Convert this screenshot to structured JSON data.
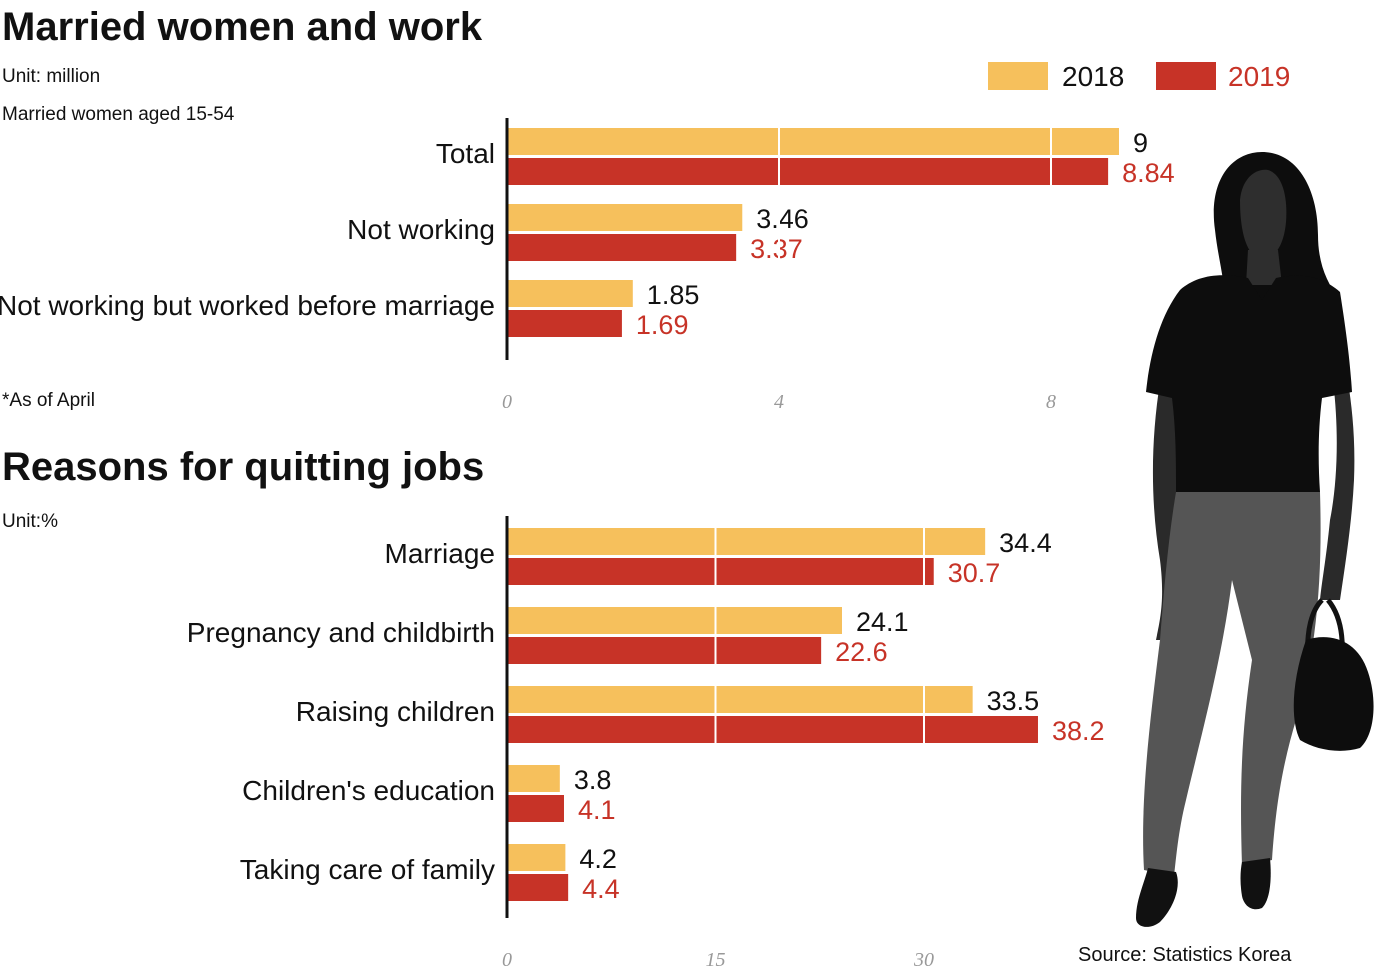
{
  "colors": {
    "y2018": "#f6c05c",
    "y2019": "#c73327",
    "axis": "#111111",
    "tick": "#999999",
    "silhouette_top": "#0d0d0d",
    "silhouette_pants": "#555555"
  },
  "legend": {
    "items": [
      "2018",
      "2019"
    ]
  },
  "figure": {
    "icon": "woman-silhouette-icon"
  },
  "source": "Source: Statistics Korea",
  "chart_data": [
    {
      "type": "bar",
      "title": "Married women and work",
      "unit": "Unit: million",
      "subtitle": "Married women aged 15-54",
      "footnote": "*As of April",
      "categories": [
        "Total",
        "Not working",
        "Not working but worked before marriage"
      ],
      "series": [
        {
          "name": "2018",
          "values": [
            9,
            3.46,
            1.85
          ],
          "labels": [
            "9",
            "3.46",
            "1.85"
          ]
        },
        {
          "name": "2019",
          "values": [
            8.84,
            3.37,
            1.69
          ],
          "labels": [
            "8.84",
            "3.37",
            "1.69"
          ]
        }
      ],
      "xlim": [
        0,
        9
      ],
      "ticks": [
        0,
        4,
        8
      ],
      "tick_labels": [
        "0",
        "4",
        "8"
      ],
      "orientation": "horizontal",
      "grid": "white lines at ticks",
      "legend": "top-right"
    },
    {
      "type": "bar",
      "title": "Reasons for quitting jobs",
      "unit": "Unit:%",
      "categories": [
        "Marriage",
        "Pregnancy and childbirth",
        "Raising children",
        "Children's education",
        "Taking care of family"
      ],
      "series": [
        {
          "name": "2018",
          "values": [
            34.4,
            24.1,
            33.5,
            3.8,
            4.2
          ],
          "labels": [
            "34.4",
            "24.1",
            "33.5",
            "3.8",
            "4.2"
          ]
        },
        {
          "name": "2019",
          "values": [
            30.7,
            22.6,
            38.2,
            4.1,
            4.4
          ],
          "labels": [
            "30.7",
            "22.6",
            "38.2",
            "4.1",
            "4.4"
          ]
        }
      ],
      "xlim": [
        0,
        38.2
      ],
      "ticks": [
        0,
        15,
        30
      ],
      "tick_labels": [
        "0",
        "15",
        "30"
      ],
      "orientation": "horizontal",
      "grid": "white lines at ticks",
      "legend": "top-right"
    }
  ]
}
